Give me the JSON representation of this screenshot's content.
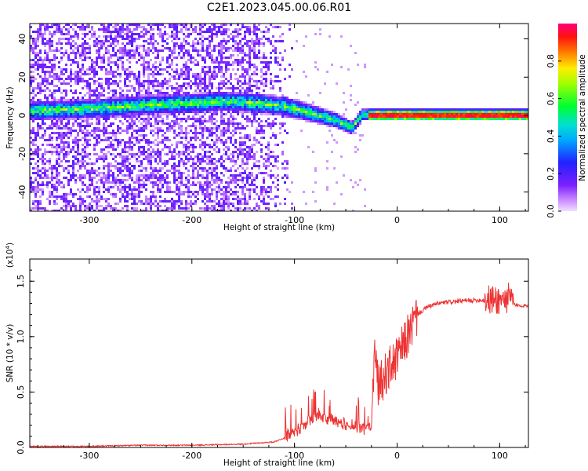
{
  "chart_data": [
    {
      "type": "heatmap",
      "title": "C2E1.2023.045.00.06.R01",
      "xlabel": "Height of straight line (km)",
      "ylabel": "Frequency (Hz)",
      "xlim": [
        -358,
        128
      ],
      "ylim": [
        -50,
        48
      ],
      "xticks": [
        "-300",
        "-200",
        "-100",
        "0",
        "100"
      ],
      "xtick_values": [
        -300,
        -200,
        -100,
        0,
        100
      ],
      "yticks": [
        "-40",
        "-20",
        "0",
        "20",
        "40"
      ],
      "ytick_values": [
        -40,
        -20,
        0,
        20,
        40
      ],
      "colorbar": {
        "label": "Normalized spectral amplitude",
        "ticks": [
          "0.0",
          "0.2",
          "0.4",
          "0.6",
          "0.8"
        ],
        "tick_values": [
          0.0,
          0.2,
          0.4,
          0.6,
          0.8
        ],
        "range": [
          0,
          1
        ]
      },
      "ridge": {
        "x": [
          -358,
          -300,
          -250,
          -200,
          -170,
          -140,
          -120,
          -100,
          -80,
          -60,
          -45,
          -35,
          -20,
          0,
          50,
          100,
          128
        ],
        "y": [
          3,
          4,
          6,
          7,
          8,
          7,
          6,
          4,
          1,
          -2,
          -6,
          1,
          1,
          1,
          1,
          1,
          1
        ]
      }
    },
    {
      "type": "line",
      "title": "",
      "xlabel": "Height of straight line (km)",
      "ylabel": "SNR (10 * v/v)",
      "y_multiplier": "(x10",
      "y_multiplier_exp": "4",
      "y_multiplier_close": ")",
      "xlim": [
        -358,
        128
      ],
      "ylim": [
        0,
        1.7
      ],
      "xticks": [
        "-300",
        "-200",
        "-100",
        "0",
        "100"
      ],
      "xtick_values": [
        -300,
        -200,
        -100,
        0,
        100
      ],
      "yticks": [
        "0.0",
        "0.5",
        "1.0",
        "1.5"
      ],
      "ytick_values": [
        0.0,
        0.5,
        1.0,
        1.5
      ],
      "color": "#ee3333",
      "series": [
        {
          "x": [
            -358,
            -300,
            -250,
            -200,
            -150,
            -120,
            -100,
            -90,
            -80,
            -70,
            -60,
            -50,
            -40,
            -30,
            -25,
            -22,
            -18,
            -12,
            -5,
            0,
            10,
            20,
            30,
            40,
            60,
            80,
            90,
            100,
            110,
            115,
            128
          ],
          "y": [
            0.01,
            0.01,
            0.02,
            0.02,
            0.03,
            0.05,
            0.12,
            0.2,
            0.28,
            0.25,
            0.22,
            0.2,
            0.18,
            0.15,
            0.2,
            0.85,
            0.55,
            0.65,
            0.75,
            0.8,
            1.0,
            1.2,
            1.27,
            1.3,
            1.32,
            1.33,
            1.33,
            1.33,
            1.35,
            1.28,
            1.28
          ]
        }
      ]
    }
  ]
}
